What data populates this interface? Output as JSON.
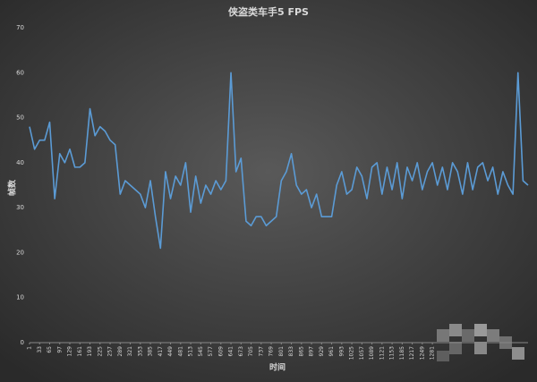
{
  "chart_data": {
    "type": "line",
    "title": "侠盗类车手5 FPS",
    "x_label": "时间",
    "y_label": "帧数",
    "series": [
      {
        "name": "FPS",
        "color": "#5b9bd5",
        "x": [
          1,
          17,
          33,
          49,
          65,
          81,
          97,
          113,
          129,
          145,
          161,
          177,
          193,
          209,
          225,
          241,
          257,
          273,
          289,
          305,
          321,
          337,
          353,
          369,
          385,
          401,
          417,
          433,
          449,
          465,
          481,
          497,
          513,
          529,
          545,
          561,
          577,
          593,
          609,
          625,
          641,
          657,
          673,
          689,
          705,
          721,
          737,
          753,
          769,
          785,
          801,
          817,
          833,
          849,
          865,
          881,
          897,
          913,
          929,
          945,
          961,
          977,
          993,
          1009,
          1025,
          1041,
          1057,
          1073,
          1089,
          1105,
          1121,
          1137,
          1153,
          1169,
          1185,
          1201,
          1217,
          1233,
          1249,
          1265,
          1281,
          1297,
          1313,
          1329,
          1345,
          1361,
          1377,
          1393,
          1409,
          1425,
          1441,
          1457,
          1473,
          1489,
          1505,
          1521,
          1537,
          1553,
          1569,
          1585
        ],
        "values": [
          48,
          43,
          45,
          45,
          49,
          32,
          42,
          40,
          43,
          39,
          39,
          40,
          52,
          46,
          48,
          47,
          45,
          44,
          33,
          36,
          35,
          34,
          33,
          30,
          36,
          28,
          21,
          38,
          32,
          37,
          35,
          40,
          29,
          37,
          31,
          35,
          33,
          36,
          34,
          36,
          60,
          38,
          41,
          27,
          26,
          28,
          28,
          26,
          27,
          28,
          36,
          38,
          42,
          35,
          33,
          34,
          30,
          33,
          28,
          28,
          28,
          35,
          38,
          33,
          34,
          39,
          37,
          32,
          39,
          40,
          33,
          39,
          34,
          40,
          32,
          39,
          36,
          40,
          34,
          38,
          40,
          35,
          39,
          34,
          40,
          38,
          33,
          40,
          34,
          39,
          40,
          36,
          39,
          33,
          38,
          35,
          33,
          60,
          36,
          35
        ]
      }
    ],
    "xlim": [
      1,
      1585
    ],
    "xticks": [
      1,
      33,
      65,
      97,
      129,
      161,
      193,
      225,
      257,
      289,
      321,
      353,
      385,
      417,
      449,
      481,
      513,
      545,
      577,
      609,
      641,
      673,
      705,
      737,
      769,
      801,
      833,
      865,
      897,
      929,
      961,
      993,
      1025,
      1057,
      1089,
      1121,
      1153,
      1185,
      1217,
      1249,
      1281
    ],
    "ylim": [
      0,
      70
    ],
    "yticks": [
      0,
      10,
      20,
      30,
      40,
      50,
      60,
      70
    ],
    "grid": false
  }
}
